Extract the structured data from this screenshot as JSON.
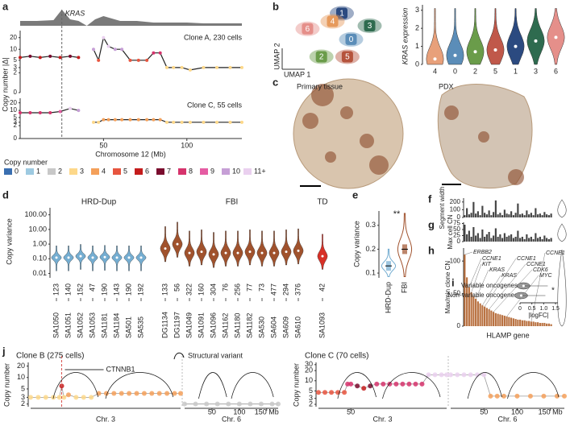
{
  "chart_data": [
    {
      "type": "line",
      "panel": "a",
      "annotation": "KRAS",
      "annotation_x": 25,
      "ylabel": "Copy number |Δ|",
      "xlabel": "Chromosome 12 (Mb)",
      "xlim": [
        0,
        133
      ],
      "xticks": [
        50,
        100
      ],
      "ylim": [
        0,
        30
      ],
      "yticks": [
        0,
        2,
        3,
        5,
        10,
        20
      ],
      "yscale": "log1p",
      "density": {
        "x": [
          0,
          10,
          20,
          25,
          30,
          35,
          40,
          45,
          50,
          60,
          70,
          80,
          90,
          100,
          110,
          120,
          133
        ],
        "values": [
          0.3,
          0.3,
          0.35,
          1,
          0.4,
          0.3,
          0,
          0.4,
          0.6,
          0.3,
          0.3,
          0.2,
          0.2,
          0.2,
          0.15,
          0.15,
          0.15
        ]
      },
      "series": [
        {
          "name": "Clone A, 230 cells",
          "x": [
            0,
            6,
            12,
            18,
            24,
            30,
            35,
            38,
            44,
            47,
            50,
            53,
            57,
            61,
            66,
            71,
            76,
            80,
            84,
            88,
            92,
            97,
            102,
            110,
            118,
            126,
            133
          ],
          "values": [
            6,
            6.5,
            6,
            6.5,
            6,
            6.5,
            6,
            null,
            10,
            5,
            20,
            12,
            10,
            10,
            5,
            5,
            5,
            8,
            8,
            3,
            3,
            3,
            2.5,
            3,
            3,
            3,
            3
          ]
        },
        {
          "name": "Clone C, 55 cells",
          "x": [
            0,
            6,
            12,
            18,
            24,
            30,
            35,
            38,
            44,
            47,
            50,
            53,
            57,
            61,
            66,
            71,
            76,
            80,
            84,
            88,
            92,
            97,
            102,
            110,
            118,
            126,
            133
          ],
          "values": [
            8,
            8,
            8,
            8,
            9,
            12,
            10,
            null,
            3,
            3,
            4,
            4,
            4,
            4,
            4,
            4,
            4,
            4,
            4,
            3,
            3,
            3,
            3,
            3,
            3,
            3,
            3
          ]
        }
      ],
      "legend": {
        "title": "Copy number",
        "labels": [
          "0",
          "1",
          "2",
          "3",
          "4",
          "5",
          "6",
          "7",
          "8",
          "9",
          "10",
          "11+"
        ],
        "colors": [
          "#3a6fb0",
          "#9ecae1",
          "#c8c8c8",
          "#fdd88a",
          "#f4a05a",
          "#e7553f",
          "#c41c1c",
          "#7a0c2e",
          "#d6336c",
          "#e55ca3",
          "#c69fd6",
          "#ead0ef"
        ]
      }
    },
    {
      "type": "scatter",
      "panel": "b",
      "xlabel": "UMAP 1",
      "ylabel": "UMAP 2",
      "xlim": [
        0,
        10
      ],
      "ylim": [
        0,
        10
      ],
      "categories": [
        "0",
        "1",
        "2",
        "3",
        "4",
        "5",
        "6"
      ],
      "x": [
        7.0,
        6.0,
        3.8,
        9.0,
        5.0,
        6.6,
        2.3
      ],
      "y": [
        4.3,
        8.5,
        1.5,
        6.5,
        7.2,
        1.5,
        6.0
      ],
      "colors": [
        "#5b8db8",
        "#2b4a80",
        "#6a9c4a",
        "#2e6b4f",
        "#e69a5c",
        "#b5533c",
        "#e58f8a"
      ]
    },
    {
      "type": "violin",
      "ylabel": "KRAS expression",
      "categories": [
        "4",
        "0",
        "2",
        "5",
        "1",
        "3",
        "6"
      ],
      "values": [
        0.3,
        0.5,
        0.7,
        0.8,
        1.0,
        1.3,
        1.5
      ],
      "ylim": [
        0,
        3.3
      ],
      "yticks": [
        0,
        1,
        2,
        3
      ],
      "colors": [
        "#e8a07a",
        "#5b8db8",
        "#6a9c4a",
        "#c0584a",
        "#2b4a80",
        "#2e6b4f",
        "#e58f8a"
      ]
    },
    {
      "type": "image",
      "panel": "c",
      "labels": [
        "Primary tissue",
        "PDX"
      ]
    },
    {
      "type": "violin",
      "panel": "d",
      "ylabel": "Copy variance",
      "yscale": "log",
      "ylim": [
        0.005,
        300
      ],
      "yticks": [
        0.01,
        {
          "value": 0.1,
          "label": "0.10"
        },
        {
          "value": 1,
          "label": "1.00"
        },
        {
          "value": 10,
          "label": "10.00"
        },
        {
          "value": 100,
          "label": "100.00"
        }
      ],
      "groups": [
        {
          "name": "HRD-Dup",
          "color": "#74add1",
          "categories": [
            "SA1050",
            "SA1051",
            "SA1052",
            "SA1053",
            "SA1181",
            "SA1184",
            "SA501",
            "SA535"
          ],
          "counts": [
            123,
            140,
            152,
            47,
            190,
            143,
            190,
            192
          ],
          "values": [
            0.12,
            0.12,
            0.15,
            0.12,
            0.13,
            0.12,
            0.12,
            0.12
          ]
        },
        {
          "name": "FBI",
          "color": "#a0522d",
          "categories": [
            "DG1134",
            "DG1197",
            "SA1049",
            "SA1091",
            "SA1096",
            "SA1162",
            "SA1180",
            "SA1182",
            "SA530",
            "SA604",
            "SA609",
            "SA610"
          ],
          "counts": [
            133,
            56,
            322,
            160,
            304,
            76,
            256,
            77,
            73,
            477,
            294,
            376
          ],
          "values": [
            0.5,
            1.0,
            0.25,
            0.3,
            0.2,
            0.25,
            0.25,
            0.3,
            0.25,
            0.25,
            0.3,
            0.35
          ]
        },
        {
          "name": "TD",
          "color": "#d73027",
          "categories": [
            "SA1093"
          ],
          "counts": [
            42
          ],
          "values": [
            0.15
          ]
        }
      ]
    },
    {
      "type": "box",
      "panel": "e",
      "ylabel": "Copy variance",
      "annotation": "**",
      "categories": [
        "HRD-Dup",
        "FBI"
      ],
      "values": [
        0.13,
        0.2
      ],
      "colors": [
        "#74add1",
        "#a0522d"
      ],
      "ylim": [
        0.08,
        0.36
      ],
      "yticks": [
        0.1,
        0.2,
        0.3
      ]
    },
    {
      "type": "bar",
      "panel": "f",
      "ylabel": "Segment width",
      "ylim": [
        0,
        250
      ],
      "yticks": [
        0,
        100,
        200
      ],
      "color": "#444444",
      "values": [
        30,
        120,
        40,
        60,
        200,
        50,
        80,
        30,
        150,
        60,
        40,
        90,
        30,
        70,
        220,
        40,
        60,
        30,
        100,
        50,
        40,
        80,
        30,
        60,
        180,
        40,
        50,
        30,
        90,
        40,
        60,
        30,
        120,
        40,
        50,
        30,
        70,
        40,
        30,
        50
      ]
    },
    {
      "type": "bar",
      "panel": "g",
      "ylabel": "Max cell CN",
      "ylim": [
        0,
        80
      ],
      "yticks": [
        0,
        25,
        50,
        75
      ],
      "color": "#444444",
      "values": [
        70,
        30,
        45,
        20,
        60,
        25,
        35,
        15,
        50,
        20,
        30,
        40,
        15,
        25,
        55,
        20,
        30,
        15,
        35,
        20,
        25,
        30,
        15,
        20,
        45,
        15,
        20,
        10,
        30,
        15,
        20,
        10,
        35,
        15,
        20,
        10,
        25,
        15,
        10,
        15
      ]
    },
    {
      "type": "bar",
      "panel": "h",
      "ylabel": "Max/min clone CN",
      "xlabel": "HLAMP gene",
      "ylim": [
        0,
        120
      ],
      "yticks": [
        0,
        50,
        100
      ],
      "color": "#b8703f",
      "values": [
        110,
        75,
        60,
        52,
        46,
        42,
        38,
        35,
        32,
        30,
        28,
        26,
        24,
        22,
        20,
        19,
        18,
        17,
        16,
        15,
        14,
        13,
        12,
        11,
        10,
        10,
        9,
        9,
        8,
        8,
        7,
        7,
        6,
        6,
        5,
        5,
        5,
        4,
        4,
        3
      ],
      "annotations": [
        {
          "text": "ERBB2",
          "x": 0
        },
        {
          "text": "CCNE1",
          "x": 2
        },
        {
          "text": "KIT",
          "x": 3
        },
        {
          "text": "KRAS",
          "x": 5
        },
        {
          "text": "KRAS",
          "x": 8
        },
        {
          "text": "CCNE1",
          "x": 9
        },
        {
          "text": "CCNE1",
          "x": 11
        },
        {
          "text": "CDK6",
          "x": 13
        },
        {
          "text": "MYC",
          "x": 19
        },
        {
          "text": "CCNE1",
          "x": 30
        }
      ]
    },
    {
      "type": "violin",
      "panel": "i",
      "xlabel": "|logFC|",
      "annotation": "*",
      "categories": [
        "Variable oncogenes",
        "Non-variable oncogenes"
      ],
      "values": [
        0.15,
        0.05
      ],
      "xlim": [
        0,
        1.6
      ],
      "xticks": [
        0,
        0.5,
        {
          "value": 1,
          "label": "1.0"
        },
        1.5
      ]
    },
    {
      "type": "scatter",
      "panel": "j",
      "title": "Clone B (275 cells)",
      "ylabel": "Copy number",
      "legend": "Structural variant",
      "annotation": "CTNNB1",
      "annotation_x": 41,
      "yscale": "log",
      "ylim": [
        1.7,
        25
      ],
      "yticks": [
        2,
        3,
        5,
        10,
        20
      ],
      "chromosomes": [
        {
          "name": "Chr. 3",
          "xlim": [
            0,
            198
          ],
          "xticks": [],
          "x": [
            0,
            10,
            20,
            30,
            38,
            41,
            44,
            50,
            60,
            70,
            80,
            90,
            100,
            110,
            120,
            130,
            140,
            150,
            160,
            170,
            180,
            190,
            198
          ],
          "values": [
            3,
            3,
            3,
            3,
            3,
            6,
            3,
            3.5,
            3,
            3,
            3,
            3.8,
            3.8,
            3.8,
            3.8,
            3.8,
            3.8,
            3.8,
            3.8,
            3.8,
            3.8,
            3.8,
            3.8
          ]
        },
        {
          "name": "Chr. 6",
          "xlim": [
            0,
            171
          ],
          "xticks": [
            50,
            100,
            {
              "value": 150,
              "label": "150 Mb"
            }
          ],
          "x": [
            0,
            20,
            40,
            60,
            80,
            100,
            120,
            140,
            160,
            171
          ],
          "values": [
            2,
            2,
            2,
            2,
            2,
            2,
            2,
            2,
            2,
            2
          ]
        }
      ]
    },
    {
      "type": "scatter",
      "title": "Clone C (70 cells)",
      "ylabel": "Copy number",
      "yscale": "log",
      "ylim": [
        1.7,
        35
      ],
      "yticks": [
        2,
        3,
        5,
        10,
        20,
        30
      ],
      "chromosomes": [
        {
          "name": "Chr. 3",
          "xlim": [
            0,
            198
          ],
          "xticks": [
            50
          ],
          "x": [
            0,
            10,
            20,
            30,
            40,
            45,
            50,
            60,
            70,
            80,
            90,
            100,
            110,
            120,
            130,
            140,
            150,
            160,
            170,
            180,
            190,
            198
          ],
          "values": [
            4.5,
            4.5,
            4.5,
            4.5,
            4.5,
            8,
            8,
            7,
            6,
            7,
            8,
            8,
            8,
            8,
            8,
            8,
            8,
            8,
            15,
            15,
            15,
            15
          ]
        },
        {
          "name": "Chr. 6",
          "xlim": [
            0,
            171
          ],
          "xticks": [
            50,
            100,
            {
              "value": 150,
              "label": "150 Mb"
            }
          ],
          "x": [
            0,
            10,
            20,
            30,
            40,
            50,
            60,
            70,
            80,
            100,
            120,
            140,
            160,
            171
          ],
          "values": [
            15,
            15,
            15,
            15,
            15,
            15,
            3.5,
            3.5,
            3.5,
            3.5,
            3.5,
            3.5,
            3.5,
            3.5
          ]
        }
      ]
    }
  ]
}
